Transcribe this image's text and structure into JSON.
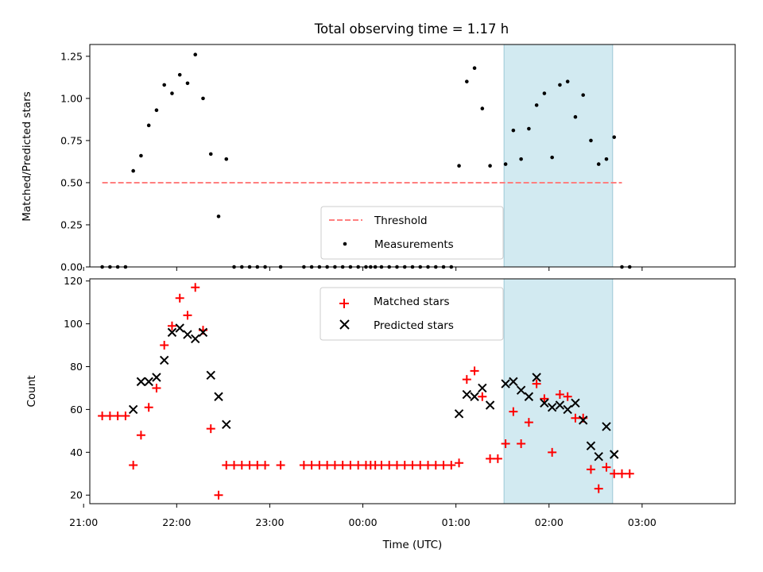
{
  "chart_data": [
    {
      "type": "scatter",
      "title": "Total observing time = 1.17 h",
      "xlabel": "",
      "ylabel": "Matched/Predicted stars",
      "ylim": [
        0,
        1.32
      ],
      "yticks": [
        "0.00",
        "0.25",
        "0.50",
        "0.75",
        "1.00",
        "1.25"
      ],
      "highlight_span": {
        "start": "01:31",
        "end": "02:41",
        "color": "#add8e6"
      },
      "threshold": {
        "name": "Threshold",
        "value": 0.5,
        "x_start": "21:12",
        "x_end": "02:47",
        "color": "#ff7f7f"
      },
      "legend": {
        "position": "lower center",
        "entries": [
          "Threshold",
          "Measurements"
        ]
      },
      "series": [
        {
          "name": "Measurements",
          "color": "#000000",
          "points": [
            [
              "21:12",
              0
            ],
            [
              "21:17",
              0
            ],
            [
              "21:22",
              0
            ],
            [
              "21:27",
              0
            ],
            [
              "21:32",
              0.57
            ],
            [
              "21:37",
              0.66
            ],
            [
              "21:42",
              0.84
            ],
            [
              "21:47",
              0.93
            ],
            [
              "21:52",
              1.08
            ],
            [
              "21:57",
              1.03
            ],
            [
              "22:02",
              1.14
            ],
            [
              "22:07",
              1.09
            ],
            [
              "22:12",
              1.26
            ],
            [
              "22:17",
              1.0
            ],
            [
              "22:22",
              0.67
            ],
            [
              "22:27",
              0.3
            ],
            [
              "22:32",
              0.64
            ],
            [
              "22:37",
              0
            ],
            [
              "22:42",
              0
            ],
            [
              "22:47",
              0
            ],
            [
              "22:52",
              0
            ],
            [
              "22:57",
              0
            ],
            [
              "23:07",
              0
            ],
            [
              "23:22",
              0
            ],
            [
              "23:27",
              0
            ],
            [
              "23:32",
              0
            ],
            [
              "23:37",
              0
            ],
            [
              "23:42",
              0
            ],
            [
              "23:47",
              0
            ],
            [
              "23:52",
              0
            ],
            [
              "23:57",
              0
            ],
            [
              "00:02",
              0
            ],
            [
              "00:05",
              0
            ],
            [
              "00:08",
              0
            ],
            [
              "00:12",
              0
            ],
            [
              "00:17",
              0
            ],
            [
              "00:22",
              0
            ],
            [
              "00:27",
              0
            ],
            [
              "00:32",
              0
            ],
            [
              "00:37",
              0
            ],
            [
              "00:42",
              0
            ],
            [
              "00:47",
              0
            ],
            [
              "00:52",
              0
            ],
            [
              "00:57",
              0
            ],
            [
              "01:02",
              0.6
            ],
            [
              "01:07",
              1.1
            ],
            [
              "01:12",
              1.18
            ],
            [
              "01:17",
              0.94
            ],
            [
              "01:22",
              0.6
            ],
            [
              "01:32",
              0.61
            ],
            [
              "01:37",
              0.81
            ],
            [
              "01:42",
              0.64
            ],
            [
              "01:47",
              0.82
            ],
            [
              "01:52",
              0.96
            ],
            [
              "01:57",
              1.03
            ],
            [
              "02:02",
              0.65
            ],
            [
              "02:07",
              1.08
            ],
            [
              "02:12",
              1.1
            ],
            [
              "02:17",
              0.89
            ],
            [
              "02:22",
              1.02
            ],
            [
              "02:27",
              0.75
            ],
            [
              "02:32",
              0.61
            ],
            [
              "02:37",
              0.64
            ],
            [
              "02:42",
              0.77
            ],
            [
              "02:47",
              0
            ],
            [
              "02:52",
              0
            ]
          ]
        }
      ]
    },
    {
      "type": "scatter",
      "title": "",
      "xlabel": "Time (UTC)",
      "ylabel": "Count",
      "ylim": [
        16,
        121
      ],
      "yticks": [
        "20",
        "40",
        "60",
        "80",
        "100",
        "120"
      ],
      "xticks": [
        "21:00",
        "22:00",
        "23:00",
        "00:00",
        "01:00",
        "02:00",
        "03:00"
      ],
      "highlight_span": {
        "start": "01:31",
        "end": "02:41",
        "color": "#add8e6"
      },
      "legend": {
        "position": "upper center",
        "entries": [
          "Matched stars",
          "Predicted stars"
        ]
      },
      "series": [
        {
          "name": "Matched stars",
          "marker": "+",
          "color": "#ff0000",
          "points": [
            [
              "21:12",
              57
            ],
            [
              "21:17",
              57
            ],
            [
              "21:22",
              57
            ],
            [
              "21:27",
              57
            ],
            [
              "21:32",
              34
            ],
            [
              "21:37",
              48
            ],
            [
              "21:42",
              61
            ],
            [
              "21:47",
              70
            ],
            [
              "21:52",
              90
            ],
            [
              "21:57",
              99
            ],
            [
              "22:02",
              112
            ],
            [
              "22:07",
              104
            ],
            [
              "22:12",
              117
            ],
            [
              "22:17",
              97
            ],
            [
              "22:22",
              51
            ],
            [
              "22:27",
              20
            ],
            [
              "22:32",
              34
            ],
            [
              "22:37",
              34
            ],
            [
              "22:42",
              34
            ],
            [
              "22:47",
              34
            ],
            [
              "22:52",
              34
            ],
            [
              "22:57",
              34
            ],
            [
              "23:07",
              34
            ],
            [
              "23:22",
              34
            ],
            [
              "23:27",
              34
            ],
            [
              "23:32",
              34
            ],
            [
              "23:37",
              34
            ],
            [
              "23:42",
              34
            ],
            [
              "23:47",
              34
            ],
            [
              "23:52",
              34
            ],
            [
              "23:57",
              34
            ],
            [
              "00:02",
              34
            ],
            [
              "00:05",
              34
            ],
            [
              "00:08",
              34
            ],
            [
              "00:12",
              34
            ],
            [
              "00:17",
              34
            ],
            [
              "00:22",
              34
            ],
            [
              "00:27",
              34
            ],
            [
              "00:32",
              34
            ],
            [
              "00:37",
              34
            ],
            [
              "00:42",
              34
            ],
            [
              "00:47",
              34
            ],
            [
              "00:52",
              34
            ],
            [
              "00:57",
              34
            ],
            [
              "01:02",
              35
            ],
            [
              "01:07",
              74
            ],
            [
              "01:12",
              78
            ],
            [
              "01:17",
              66
            ],
            [
              "01:22",
              37
            ],
            [
              "01:27",
              37
            ],
            [
              "01:32",
              44
            ],
            [
              "01:37",
              59
            ],
            [
              "01:42",
              44
            ],
            [
              "01:47",
              54
            ],
            [
              "01:52",
              72
            ],
            [
              "01:57",
              65
            ],
            [
              "02:02",
              40
            ],
            [
              "02:07",
              67
            ],
            [
              "02:12",
              66
            ],
            [
              "02:17",
              56
            ],
            [
              "02:22",
              56
            ],
            [
              "02:27",
              32
            ],
            [
              "02:32",
              23
            ],
            [
              "02:37",
              33
            ],
            [
              "02:42",
              30
            ],
            [
              "02:47",
              30
            ],
            [
              "02:52",
              30
            ]
          ]
        },
        {
          "name": "Predicted stars",
          "marker": "x",
          "color": "#000000",
          "points": [
            [
              "21:32",
              60
            ],
            [
              "21:37",
              73
            ],
            [
              "21:42",
              73
            ],
            [
              "21:47",
              75
            ],
            [
              "21:52",
              83
            ],
            [
              "21:57",
              96
            ],
            [
              "22:02",
              98
            ],
            [
              "22:07",
              95
            ],
            [
              "22:12",
              93
            ],
            [
              "22:17",
              96
            ],
            [
              "22:22",
              76
            ],
            [
              "22:27",
              66
            ],
            [
              "22:32",
              53
            ],
            [
              "01:02",
              58
            ],
            [
              "01:07",
              67
            ],
            [
              "01:12",
              66
            ],
            [
              "01:17",
              70
            ],
            [
              "01:22",
              62
            ],
            [
              "01:32",
              72
            ],
            [
              "01:37",
              73
            ],
            [
              "01:42",
              69
            ],
            [
              "01:47",
              66
            ],
            [
              "01:52",
              75
            ],
            [
              "01:57",
              63
            ],
            [
              "02:02",
              61
            ],
            [
              "02:07",
              62
            ],
            [
              "02:12",
              60
            ],
            [
              "02:17",
              63
            ],
            [
              "02:22",
              55
            ],
            [
              "02:27",
              43
            ],
            [
              "02:32",
              38
            ],
            [
              "02:37",
              52
            ],
            [
              "02:42",
              39
            ]
          ]
        }
      ]
    }
  ]
}
